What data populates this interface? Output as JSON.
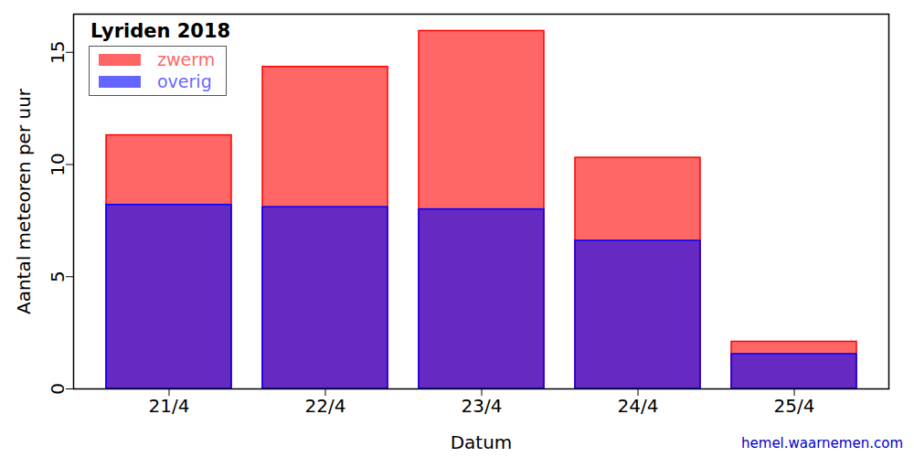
{
  "chart_data": {
    "type": "bar",
    "title": "Lyriden 2018",
    "caption": "hemel.waarnemen.com",
    "x_label": "Datum",
    "y_label": "Aantal meteoren per uur",
    "categories": [
      "21/4",
      "22/4",
      "23/4",
      "24/4",
      "25/4"
    ],
    "series": [
      {
        "name": "zwerm",
        "color": "#ff0000",
        "values": [
          3.1,
          6.25,
          7.95,
          3.7,
          0.55
        ]
      },
      {
        "name": "overig",
        "color": "#0000ff",
        "values": [
          8.2,
          8.1,
          8.0,
          6.6,
          1.55
        ]
      }
    ],
    "stacked": true,
    "ylim": [
      0,
      16.7
    ],
    "yticks": [
      0,
      5,
      10,
      15
    ],
    "legend": "upper left"
  }
}
